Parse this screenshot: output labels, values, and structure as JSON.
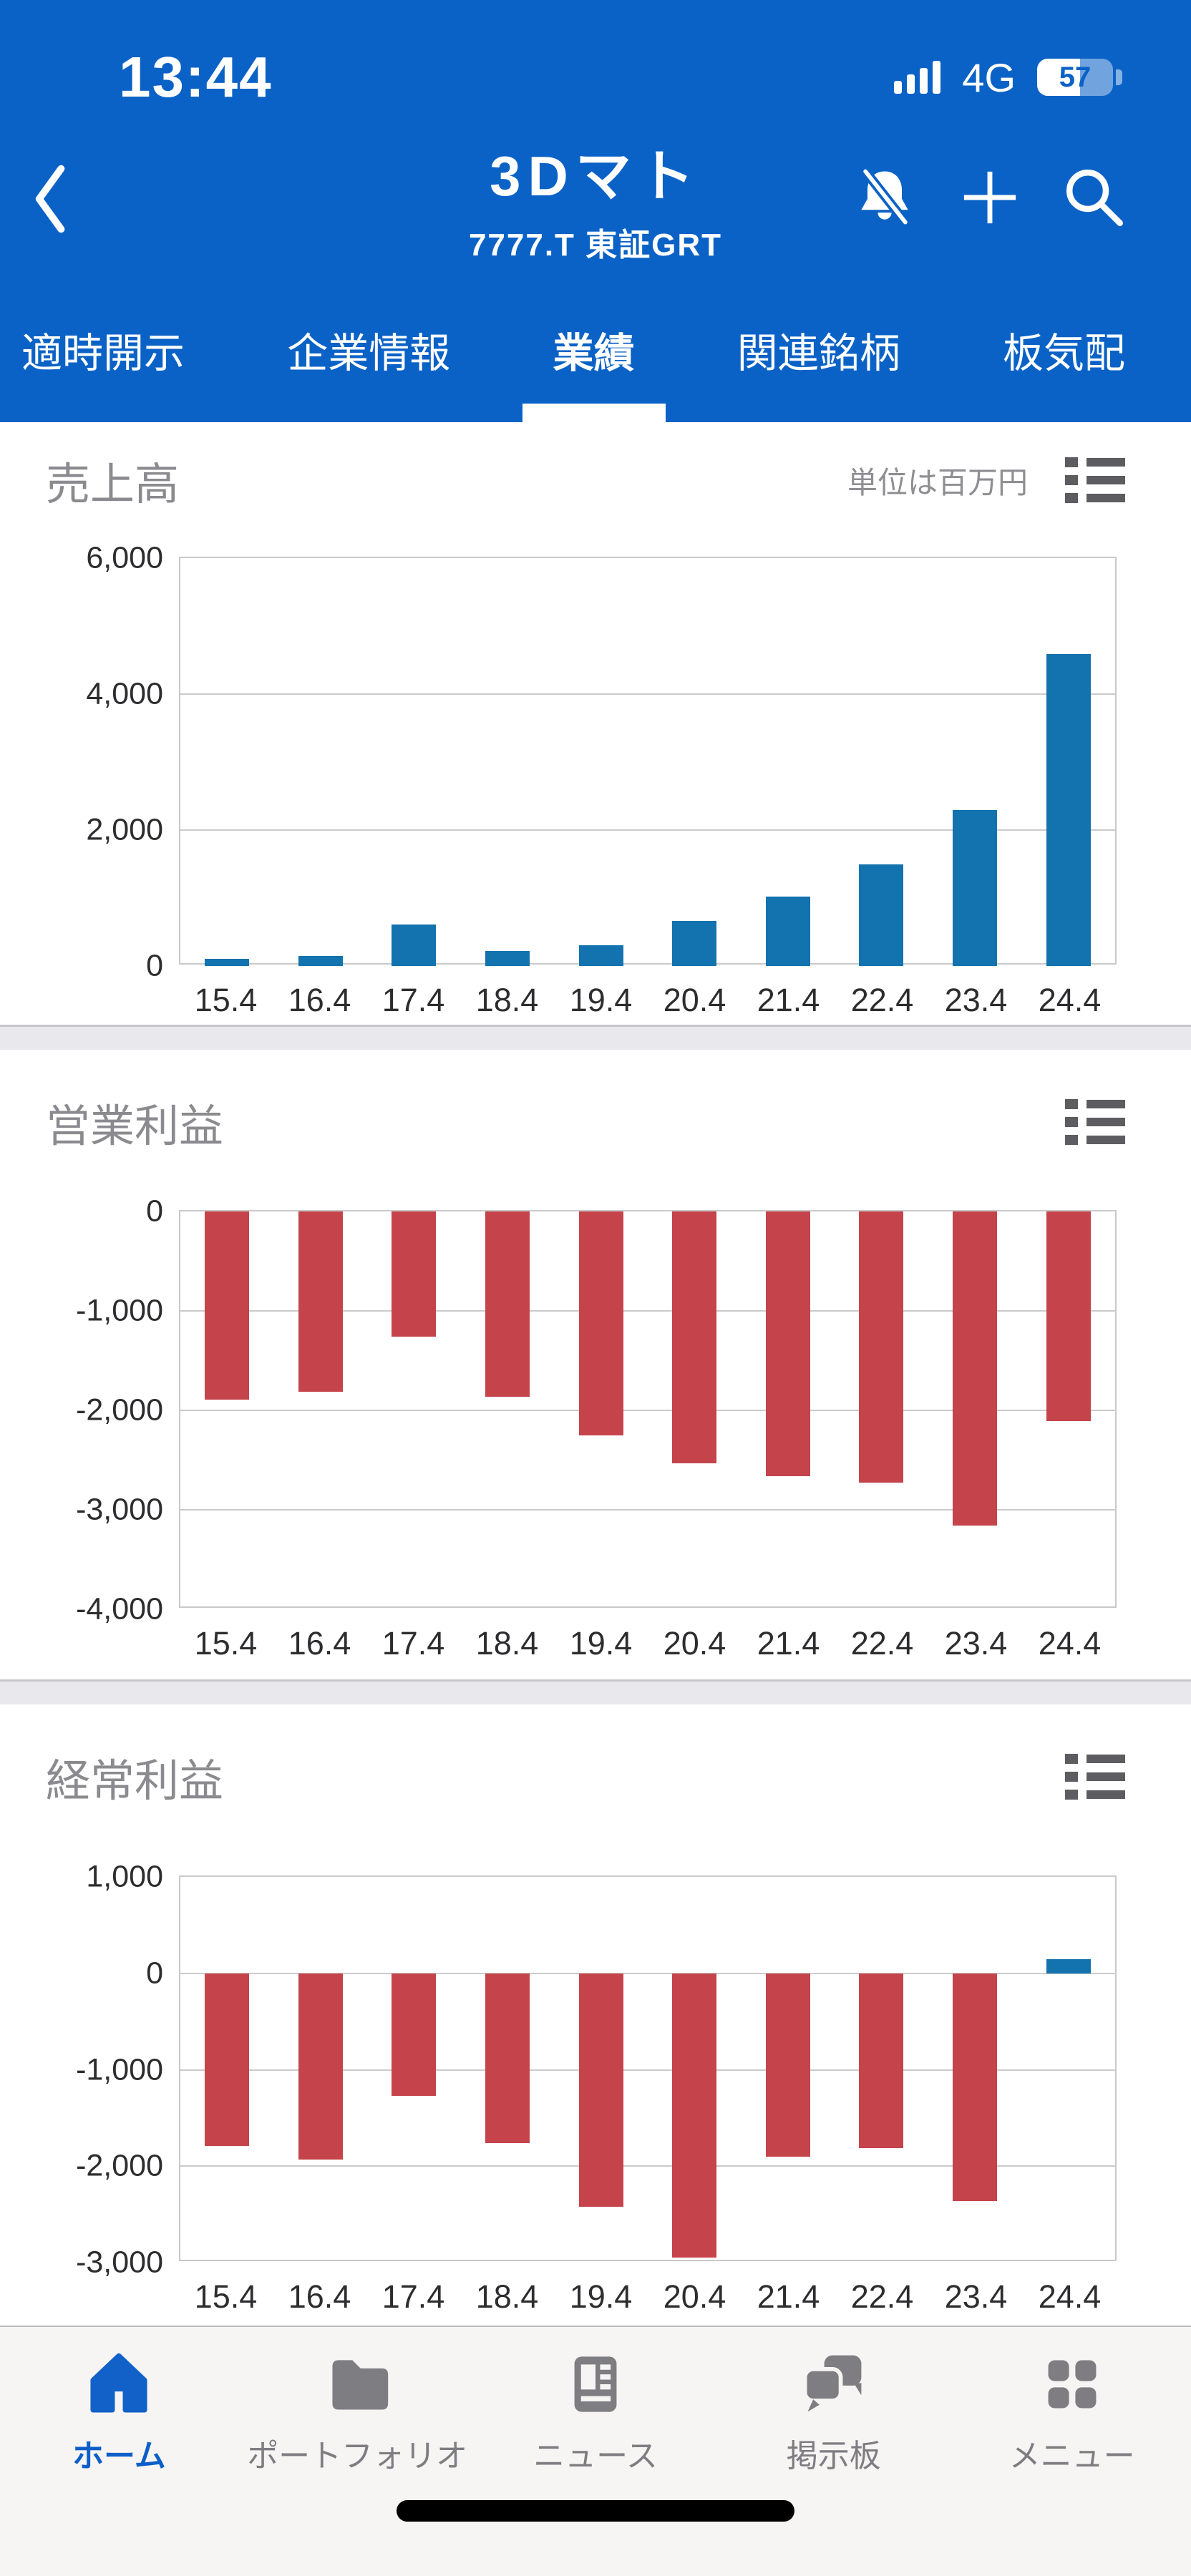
{
  "status_bar": {
    "time": "13:44",
    "network": "4G",
    "battery_level": "57"
  },
  "header": {
    "title": "3Dマト",
    "subtitle": "7777.T 東証GRT"
  },
  "tabs": {
    "items": [
      {
        "label": "適時開示",
        "active": false
      },
      {
        "label": "企業情報",
        "active": false
      },
      {
        "label": "業績",
        "active": true
      },
      {
        "label": "関連銘柄",
        "active": false
      },
      {
        "label": "板気配",
        "active": false
      }
    ]
  },
  "sections": [
    {
      "title": "売上高",
      "unit_note": "単位は百万円"
    },
    {
      "title": "営業利益"
    },
    {
      "title": "経常利益"
    }
  ],
  "chart_data": [
    {
      "type": "bar",
      "title": "売上高",
      "unit": "単位は百万円",
      "categories": [
        "15.4",
        "16.4",
        "17.4",
        "18.4",
        "19.4",
        "20.4",
        "21.4",
        "22.4",
        "23.4",
        "24.4"
      ],
      "values": [
        110,
        150,
        610,
        220,
        310,
        660,
        1020,
        1500,
        2300,
        4590
      ],
      "ylim": [
        0,
        6000
      ],
      "ytick_step": 2000,
      "grid": true,
      "legend": "none",
      "bar_color": "#1273AE"
    },
    {
      "type": "bar",
      "title": "営業利益",
      "unit": "単位は百万円",
      "categories": [
        "15.4",
        "16.4",
        "17.4",
        "18.4",
        "19.4",
        "20.4",
        "21.4",
        "22.4",
        "23.4",
        "24.4"
      ],
      "values": [
        -1890,
        -1810,
        -1260,
        -1860,
        -2250,
        -2530,
        -2660,
        -2730,
        -3160,
        -2110
      ],
      "ylim": [
        -4000,
        0
      ],
      "ytick_step": 1000,
      "grid": true,
      "legend": "none",
      "bar_color": "#C5434B"
    },
    {
      "type": "bar",
      "title": "経常利益",
      "unit": "単位は百万円",
      "categories": [
        "15.4",
        "16.4",
        "17.4",
        "18.4",
        "19.4",
        "20.4",
        "21.4",
        "22.4",
        "23.4",
        "24.4"
      ],
      "values": [
        -1790,
        -1930,
        -1270,
        -1760,
        -2420,
        -2950,
        -1900,
        -1810,
        -2360,
        150
      ],
      "ylim": [
        -3000,
        1000
      ],
      "ytick_step": 1000,
      "grid": true,
      "legend": "none",
      "bar_color": "#C5434B",
      "positive_bar_color": "#1273AE"
    }
  ],
  "bottom_nav": {
    "items": [
      {
        "label": "ホーム",
        "icon": "home",
        "active": true
      },
      {
        "label": "ポートフォリオ",
        "icon": "folder",
        "active": false
      },
      {
        "label": "ニュース",
        "icon": "newspaper",
        "active": false
      },
      {
        "label": "掲示板",
        "icon": "chat-bubbles",
        "active": false
      },
      {
        "label": "メニュー",
        "icon": "grid-menu",
        "active": false
      }
    ]
  },
  "colors": {
    "header_blue": "#0B62C6",
    "bar_blue": "#1273AE",
    "bar_red": "#C5434B",
    "section_title_gray": "#8A8A8F",
    "grid_line": "#CBCBCB",
    "page_gap": "#E9E8ED",
    "nav_active_blue": "#0D5FC8",
    "nav_inactive_gray": "#7D7D82"
  }
}
